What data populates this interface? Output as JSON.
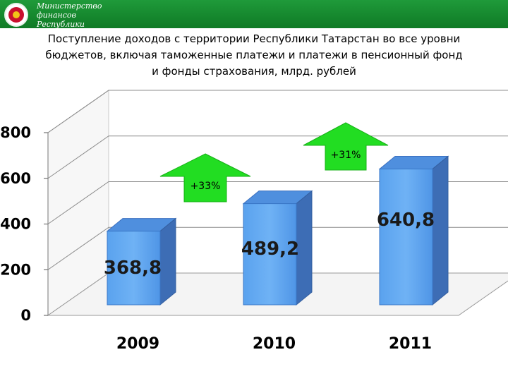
{
  "header": {
    "ministry_lines": [
      "Министерство",
      "финансов",
      "Республики"
    ]
  },
  "colors": {
    "header": "#148a30",
    "bar_front": "#5aa2ee",
    "bar_side": "#3d6db5",
    "arrow": "#22dd22"
  },
  "chart_data": {
    "type": "bar",
    "title": "Поступление доходов с территории Республики Татарстан во все уровни бюджетов, включая таможенные платежи и платежи в пенсионный фонд и фонды страхования, млрд. рублей",
    "title_lines": [
      "Поступление доходов с территории Республики Татарстан во все уровни",
      "бюджетов, включая таможенные платежи и платежи в пенсионный фонд",
      "и фонды страхования, млрд. рублей"
    ],
    "categories": [
      "2009",
      "2010",
      "2011"
    ],
    "values": [
      368.8,
      489.2,
      640.8
    ],
    "value_labels": [
      "368,8",
      "489,2",
      "640,8"
    ],
    "yticks": [
      0,
      200,
      400,
      600,
      800
    ],
    "ylim": [
      0,
      800
    ],
    "growth": [
      {
        "from": "2009",
        "to": "2010",
        "label": "+33%"
      },
      {
        "from": "2010",
        "to": "2011",
        "label": "+31%"
      }
    ],
    "grid": true,
    "style": "3d-bar"
  }
}
